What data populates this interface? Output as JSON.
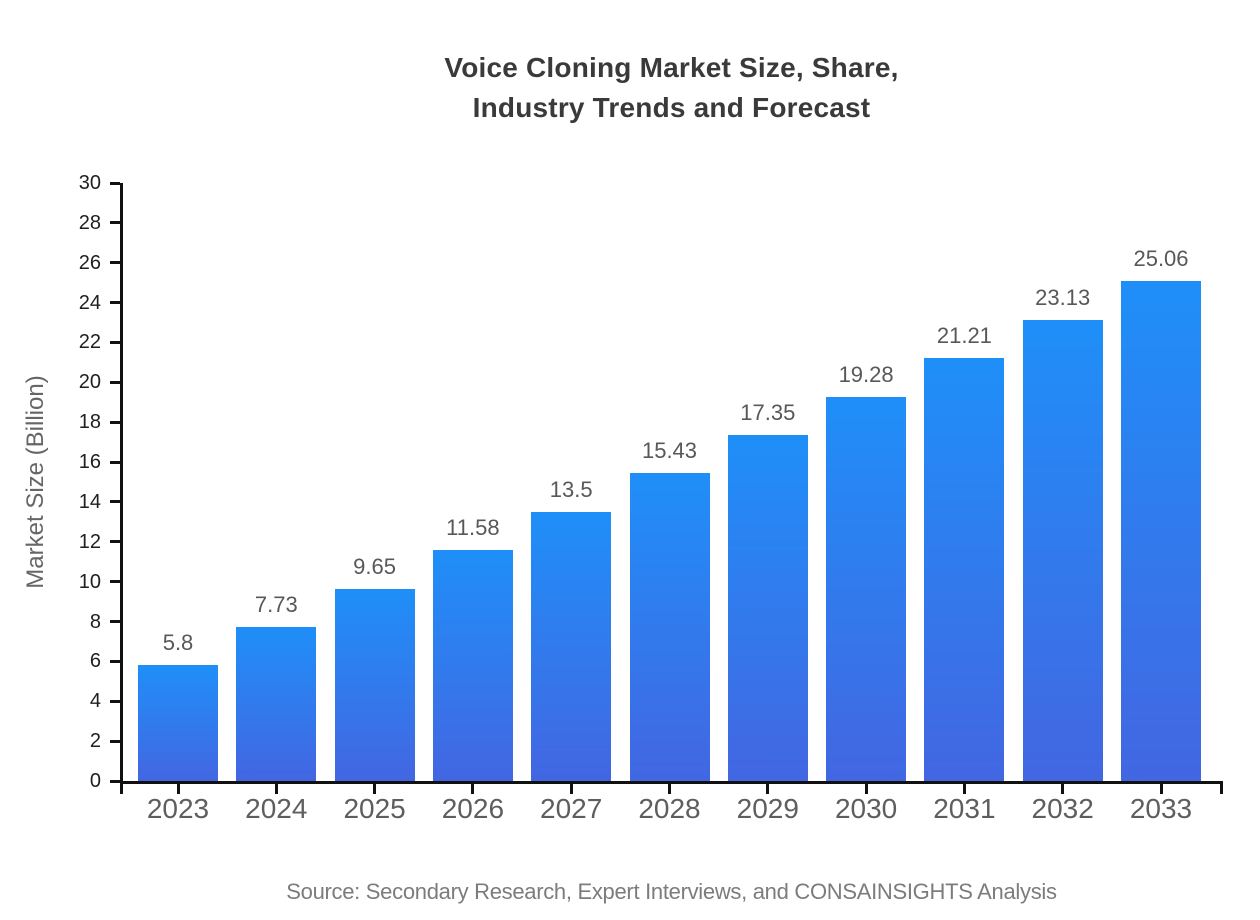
{
  "title": {
    "line1": "Voice Cloning Market Size, Share,",
    "line2": "Industry Trends and Forecast"
  },
  "source": "Source: Secondary Research, Expert Interviews, and CONSAINSIGHTS Analysis",
  "chart_data": {
    "type": "bar",
    "title": "Voice Cloning Market Size, Share, Industry Trends and Forecast",
    "categories": [
      "2023",
      "2024",
      "2025",
      "2026",
      "2027",
      "2028",
      "2029",
      "2030",
      "2031",
      "2032",
      "2033"
    ],
    "values": [
      5.8,
      7.73,
      9.65,
      11.58,
      13.5,
      15.43,
      17.35,
      19.28,
      21.21,
      23.13,
      25.06
    ],
    "xlabel": "",
    "ylabel": "Market Size (Billion)",
    "ylim": [
      0,
      30
    ],
    "ytick_step": 2,
    "grid": false,
    "legend": "none",
    "bar_color_top": "#1f8ff8",
    "bar_color_bottom": "#4366e2",
    "axis_color": "#111111",
    "value_label_color": "#585858"
  }
}
